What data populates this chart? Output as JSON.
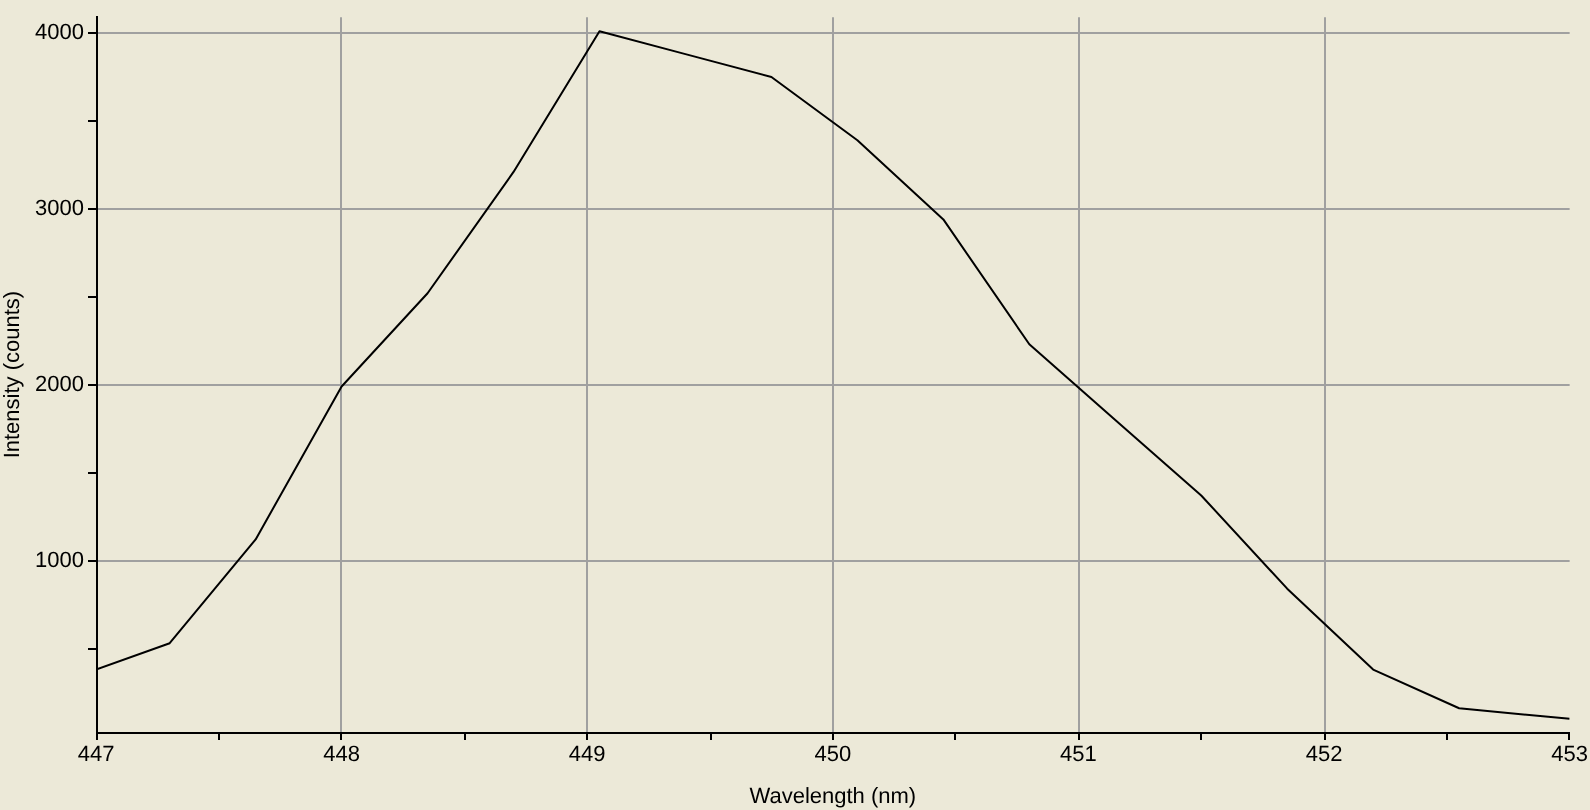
{
  "chart_data": {
    "type": "line",
    "xlabel": "Wavelength (nm)",
    "ylabel": "Intensity (counts)",
    "x": [
      447.0,
      447.3,
      447.65,
      448.0,
      448.35,
      448.7,
      449.05,
      449.4,
      449.75,
      450.1,
      450.45,
      450.8,
      451.15,
      451.5,
      451.85,
      452.2,
      452.55,
      453.0
    ],
    "series": [
      {
        "color": "#000000",
        "values": [
          380,
          530,
          1120,
          1990,
          2520,
          3210,
          4010,
          3880,
          3750,
          3390,
          2940,
          2230,
          1800,
          1370,
          840,
          380,
          160,
          100
        ]
      }
    ],
    "xlim": [
      447,
      453
    ],
    "ylim": [
      25,
      4090
    ],
    "xticks": [
      447,
      {
        "value": 447.5,
        "label": null
      },
      448,
      {
        "value": 448.5,
        "label": null
      },
      449,
      {
        "value": 449.5,
        "label": null
      },
      450,
      {
        "value": 450.5,
        "label": null
      },
      451,
      {
        "value": 451.5,
        "label": null
      },
      452,
      {
        "value": 452.5,
        "label": null
      },
      453
    ],
    "yticks": [
      {
        "value": 500,
        "label": null
      },
      1000,
      {
        "value": 1500,
        "label": null
      },
      2000,
      {
        "value": 2500,
        "label": null
      },
      3000,
      {
        "value": 3500,
        "label": null
      },
      4000
    ],
    "grid": true
  }
}
